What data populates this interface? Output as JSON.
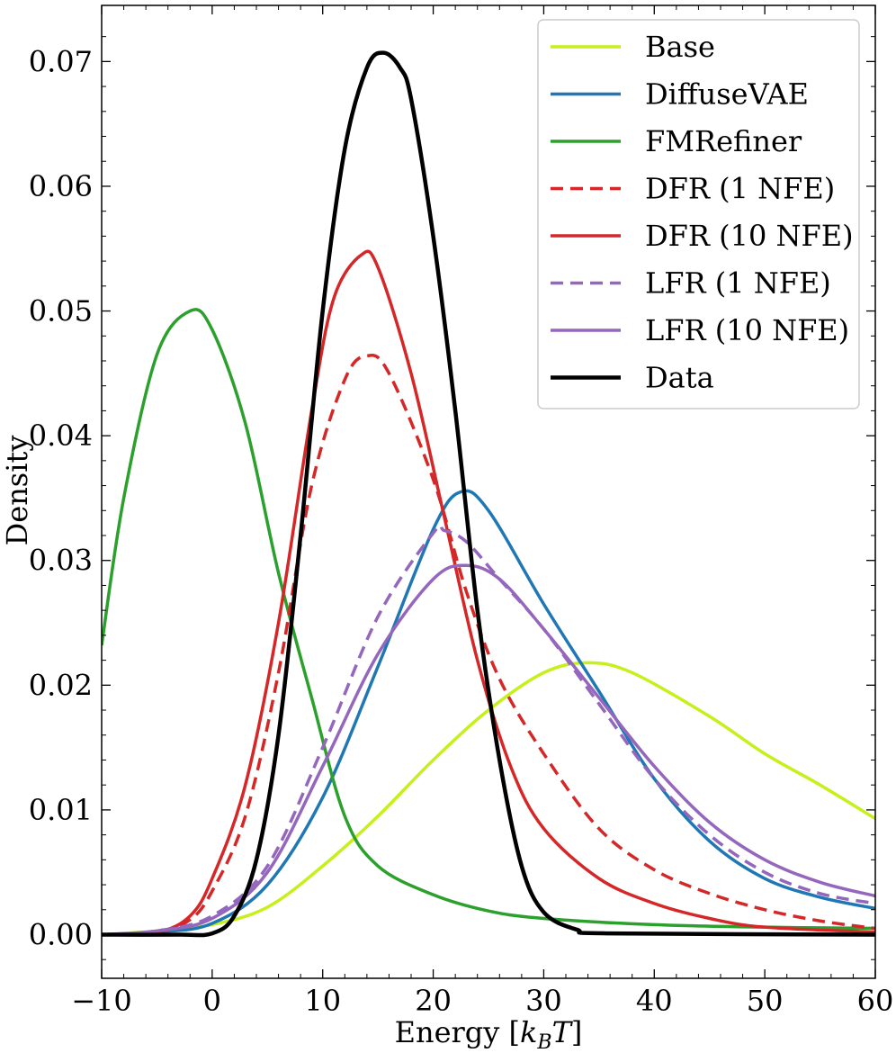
{
  "chart_data": {
    "type": "line",
    "xlabel": "Energy [k_B T]",
    "xlabel_parts": {
      "prefix": "Energy [",
      "k": "k",
      "sub": "B",
      "t": "T",
      "suffix": "]"
    },
    "ylabel": "Density",
    "xlim": [
      -10,
      60
    ],
    "ylim": [
      -0.0035,
      0.0745
    ],
    "x_ticks": [
      -10,
      0,
      10,
      20,
      30,
      40,
      50,
      60
    ],
    "x_tick_labels": [
      "−10",
      "0",
      "10",
      "20",
      "30",
      "40",
      "50",
      "60"
    ],
    "y_ticks": [
      0.0,
      0.01,
      0.02,
      0.03,
      0.04,
      0.05,
      0.06,
      0.07
    ],
    "y_tick_labels": [
      "0.00",
      "0.01",
      "0.02",
      "0.03",
      "0.04",
      "0.05",
      "0.06",
      "0.07"
    ],
    "grid": false,
    "legend_position": "top-right",
    "series": [
      {
        "name": "Base",
        "color": "#c5f01a",
        "dash": false,
        "points": [
          [
            -10,
            0
          ],
          [
            -5,
            0.0003
          ],
          [
            0,
            0.0008
          ],
          [
            5,
            0.0022
          ],
          [
            10,
            0.0055
          ],
          [
            15,
            0.0095
          ],
          [
            20,
            0.014
          ],
          [
            25,
            0.018
          ],
          [
            30,
            0.021
          ],
          [
            34,
            0.0218
          ],
          [
            38,
            0.021
          ],
          [
            45,
            0.0175
          ],
          [
            50,
            0.0145
          ],
          [
            55,
            0.012
          ],
          [
            60,
            0.0093
          ]
        ]
      },
      {
        "name": "DiffuseVAE",
        "color": "#1f77b4",
        "dash": false,
        "points": [
          [
            -10,
            0
          ],
          [
            -5,
            0.0002
          ],
          [
            0,
            0.0009
          ],
          [
            5,
            0.004
          ],
          [
            10,
            0.011
          ],
          [
            15,
            0.0215
          ],
          [
            20,
            0.0325
          ],
          [
            22.5,
            0.0355
          ],
          [
            25,
            0.034
          ],
          [
            30,
            0.0265
          ],
          [
            35,
            0.0195
          ],
          [
            40,
            0.0125
          ],
          [
            45,
            0.0075
          ],
          [
            50,
            0.0045
          ],
          [
            55,
            0.003
          ],
          [
            60,
            0.0021
          ]
        ]
      },
      {
        "name": "FMRefiner",
        "color": "#2ca02c",
        "dash": false,
        "points": [
          [
            -10,
            0.0232
          ],
          [
            -8,
            0.035
          ],
          [
            -5,
            0.0465
          ],
          [
            -2,
            0.05
          ],
          [
            0,
            0.0485
          ],
          [
            3,
            0.041
          ],
          [
            6,
            0.029
          ],
          [
            9,
            0.019
          ],
          [
            12,
            0.0095
          ],
          [
            15,
            0.0055
          ],
          [
            20,
            0.0032
          ],
          [
            25,
            0.0019
          ],
          [
            30,
            0.0013
          ],
          [
            40,
            0.0008
          ],
          [
            50,
            0.0006
          ],
          [
            60,
            0.0005
          ]
        ]
      },
      {
        "name": "DFR (1 NFE)",
        "color": "#d62728",
        "dash": true,
        "points": [
          [
            -10,
            0
          ],
          [
            -5,
            0.0002
          ],
          [
            -2,
            0.0012
          ],
          [
            0,
            0.0035
          ],
          [
            3,
            0.0095
          ],
          [
            6,
            0.021
          ],
          [
            9,
            0.036
          ],
          [
            12,
            0.0445
          ],
          [
            14,
            0.0464
          ],
          [
            16,
            0.045
          ],
          [
            20,
            0.0365
          ],
          [
            23,
            0.0275
          ],
          [
            26,
            0.0205
          ],
          [
            30,
            0.0145
          ],
          [
            35,
            0.0085
          ],
          [
            40,
            0.0052
          ],
          [
            45,
            0.0033
          ],
          [
            50,
            0.002
          ],
          [
            55,
            0.0011
          ],
          [
            60,
            0.0005
          ]
        ]
      },
      {
        "name": "DFR (10 NFE)",
        "color": "#d62728",
        "dash": false,
        "points": [
          [
            -10,
            0
          ],
          [
            -5,
            0.0002
          ],
          [
            -2,
            0.0015
          ],
          [
            0,
            0.0045
          ],
          [
            3,
            0.012
          ],
          [
            6,
            0.025
          ],
          [
            9,
            0.042
          ],
          [
            11,
            0.051
          ],
          [
            13.5,
            0.0545
          ],
          [
            15,
            0.0535
          ],
          [
            18,
            0.045
          ],
          [
            21,
            0.0335
          ],
          [
            24,
            0.022
          ],
          [
            27,
            0.0135
          ],
          [
            30,
            0.0085
          ],
          [
            35,
            0.0045
          ],
          [
            40,
            0.0025
          ],
          [
            45,
            0.0013
          ],
          [
            50,
            0.0006
          ],
          [
            60,
            0.0002
          ]
        ]
      },
      {
        "name": "LFR (1 NFE)",
        "color": "#9467bd",
        "dash": true,
        "points": [
          [
            -10,
            0
          ],
          [
            -5,
            0.0003
          ],
          [
            0,
            0.0015
          ],
          [
            5,
            0.0055
          ],
          [
            10,
            0.015
          ],
          [
            15,
            0.0255
          ],
          [
            20,
            0.0322
          ],
          [
            21,
            0.0324
          ],
          [
            23,
            0.0315
          ],
          [
            26,
            0.0285
          ],
          [
            30,
            0.0245
          ],
          [
            35,
            0.0185
          ],
          [
            40,
            0.0125
          ],
          [
            45,
            0.008
          ],
          [
            50,
            0.005
          ],
          [
            55,
            0.0033
          ],
          [
            60,
            0.0025
          ]
        ]
      },
      {
        "name": "LFR (10 NFE)",
        "color": "#9467bd",
        "dash": false,
        "points": [
          [
            -10,
            0
          ],
          [
            -5,
            0.0003
          ],
          [
            0,
            0.0013
          ],
          [
            5,
            0.005
          ],
          [
            10,
            0.0135
          ],
          [
            15,
            0.0225
          ],
          [
            20,
            0.0285
          ],
          [
            23,
            0.0296
          ],
          [
            26,
            0.0285
          ],
          [
            30,
            0.0245
          ],
          [
            35,
            0.019
          ],
          [
            40,
            0.0135
          ],
          [
            45,
            0.009
          ],
          [
            50,
            0.006
          ],
          [
            55,
            0.0042
          ],
          [
            60,
            0.0031
          ]
        ]
      },
      {
        "name": "Data",
        "color": "#000000",
        "dash": false,
        "points": [
          [
            -10,
            0
          ],
          [
            -3,
            0
          ],
          [
            0,
            0.0001
          ],
          [
            2,
            0.0015
          ],
          [
            4,
            0.006
          ],
          [
            6,
            0.016
          ],
          [
            8,
            0.032
          ],
          [
            10,
            0.05
          ],
          [
            12,
            0.063
          ],
          [
            14,
            0.0695
          ],
          [
            15.5,
            0.0707
          ],
          [
            17,
            0.0695
          ],
          [
            18,
            0.067
          ],
          [
            20,
            0.056
          ],
          [
            22,
            0.042
          ],
          [
            24,
            0.026
          ],
          [
            26,
            0.014
          ],
          [
            28,
            0.0055
          ],
          [
            30,
            0.0018
          ],
          [
            33,
            0.0004
          ],
          [
            36,
            0.0001
          ],
          [
            60,
            0
          ]
        ]
      }
    ]
  }
}
